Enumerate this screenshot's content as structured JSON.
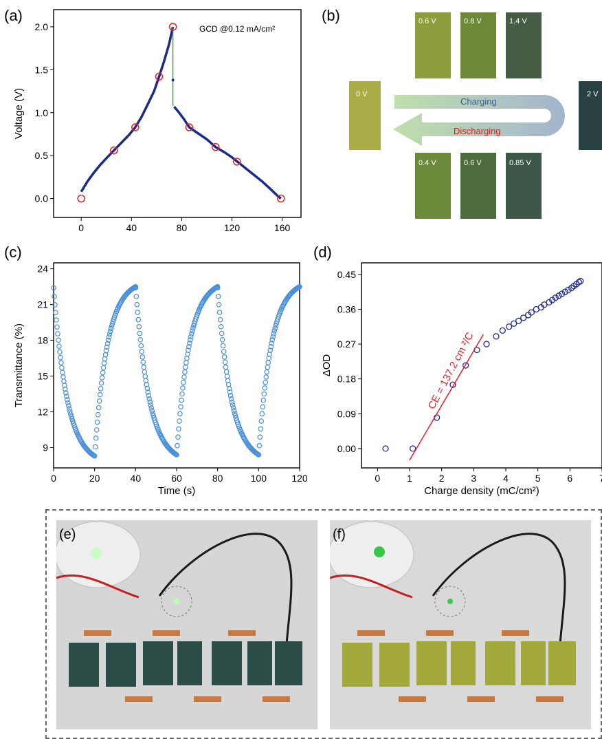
{
  "panel_labels": {
    "a": "(a)",
    "b": "(b)",
    "c": "(c)",
    "d": "(d)",
    "e": "(e)",
    "f": "(f)"
  },
  "colors": {
    "gcd_line": "#1a2a8c",
    "marker_red": "#e8202a",
    "step_green": "#33a02c",
    "trans_marker": "#4a90d9",
    "od_marker": "#1f2a8c",
    "fit_red": "#e8202a",
    "vial_green": "#8a9a3a",
    "vial_dark": "#2f4a4a",
    "arrow_charge_start": "#b8dca2",
    "arrow_charge_end": "#9aabc9"
  },
  "chart_data": [
    {
      "id": "a",
      "type": "line",
      "xlabel": "Time (s)",
      "ylabel": "Voltage (V)",
      "annotation": "GCD @0.12 mA/cm²",
      "xlim": [
        -22,
        175
      ],
      "ylim": [
        -0.22,
        2.2
      ],
      "xticks": [
        0,
        40,
        80,
        120,
        160
      ],
      "yticks": [
        0.0,
        0.5,
        1.0,
        1.5,
        2.0
      ],
      "series": [
        {
          "x": [
            0,
            5,
            10,
            15,
            20,
            26,
            32,
            38,
            43,
            48,
            53,
            58,
            62,
            66,
            70,
            73
          ],
          "y": [
            0.08,
            0.2,
            0.3,
            0.39,
            0.47,
            0.56,
            0.65,
            0.74,
            0.83,
            0.95,
            1.1,
            1.25,
            1.42,
            1.6,
            1.8,
            2.0
          ]
        },
        {
          "x": [
            74,
            78,
            82,
            86,
            92,
            100,
            107,
            114,
            120,
            126,
            132,
            138,
            144,
            150,
            155,
            159
          ],
          "y": [
            1.07,
            1.0,
            0.92,
            0.83,
            0.77,
            0.69,
            0.6,
            0.54,
            0.48,
            0.41,
            0.34,
            0.27,
            0.2,
            0.12,
            0.05,
            0.0
          ]
        }
      ],
      "drop": {
        "x": 73,
        "y_from": 2.0,
        "y_to": 1.08
      },
      "mid_point": {
        "x": 73,
        "y": 1.38
      },
      "markers": {
        "x": [
          0,
          26,
          43,
          62,
          73,
          86,
          107,
          124,
          159
        ],
        "y": [
          0.0,
          0.56,
          0.83,
          1.42,
          2.0,
          0.83,
          0.6,
          0.43,
          0.0
        ]
      }
    },
    {
      "id": "c",
      "type": "scatter",
      "xlabel": "Time (s)",
      "ylabel": "Transmittance (%)",
      "xlim": [
        0,
        120
      ],
      "ylim": [
        7.3,
        24.5
      ],
      "xticks": [
        0,
        20,
        40,
        60,
        80,
        100,
        120
      ],
      "yticks": [
        9,
        12,
        15,
        18,
        21,
        24
      ],
      "cycles": [
        {
          "t0": 0,
          "bleach_high": 22.4,
          "bleach_low": 8.3
        },
        {
          "t0": 40,
          "bleach_high": 22.4,
          "bleach_low": 8.4
        },
        {
          "t0": 80,
          "bleach_high": 22.4,
          "bleach_low": 8.4
        }
      ],
      "recovery_end": 22.5
    },
    {
      "id": "d",
      "type": "scatter",
      "xlabel": "Charge density (mC/cm²)",
      "ylabel": "ΔOD",
      "annotation": "CE = 137.2 cm ²/C",
      "xlim": [
        -0.5,
        7
      ],
      "ylim": [
        -0.05,
        0.48
      ],
      "xticks": [
        0,
        1,
        2,
        3,
        4,
        5,
        6,
        7
      ],
      "yticks": [
        0.0,
        0.09,
        0.18,
        0.27,
        0.36,
        0.45
      ],
      "points": {
        "x": [
          0.25,
          1.1,
          1.85,
          2.35,
          2.75,
          3.1,
          3.4,
          3.7,
          3.9,
          4.1,
          4.25,
          4.4,
          4.55,
          4.7,
          4.8,
          4.95,
          5.1,
          5.2,
          5.35,
          5.45,
          5.55,
          5.65,
          5.75,
          5.85,
          5.95,
          6.05,
          6.12,
          6.2,
          6.28,
          6.33
        ],
        "y": [
          0.0,
          0.0,
          0.08,
          0.165,
          0.215,
          0.255,
          0.27,
          0.29,
          0.305,
          0.315,
          0.323,
          0.33,
          0.338,
          0.345,
          0.352,
          0.36,
          0.365,
          0.372,
          0.378,
          0.384,
          0.39,
          0.395,
          0.4,
          0.405,
          0.41,
          0.415,
          0.42,
          0.425,
          0.43,
          0.433
        ]
      },
      "fit_line": {
        "x": [
          1.0,
          3.3
        ],
        "y": [
          -0.03,
          0.295
        ]
      }
    }
  ],
  "panel_b": {
    "top_vials": [
      "0.6 V",
      "0.8 V",
      "1.4 V"
    ],
    "bottom_vials": [
      "0.4 V",
      "0.6 V",
      "0.85 V"
    ],
    "left_vial": "0 V",
    "right_vial": "2 V",
    "charging": "Charging",
    "discharging": "Discharging"
  }
}
